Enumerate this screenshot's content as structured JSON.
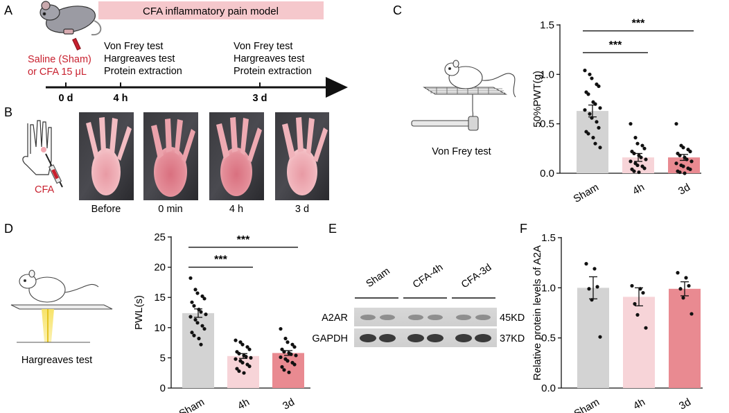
{
  "panel_letters": {
    "a": "A",
    "b": "B",
    "c": "C",
    "d": "D",
    "e": "E",
    "f": "F"
  },
  "panel_a": {
    "banner": "CFA inflammatory pain model",
    "injection_line1": "Saline (Sham)",
    "injection_line2": "or CFA 15 μL",
    "tests_4h": [
      "Von Frey test",
      "Hargreaves test",
      "Protein extraction"
    ],
    "tests_3d": [
      "Von Frey test",
      "Hargreaves test",
      "Protein extraction"
    ],
    "timepoints": [
      "0 d",
      "4 h",
      "3 d"
    ],
    "colors": {
      "banner": "#f5c8cc",
      "injection_text": "#c8202e"
    }
  },
  "panel_b": {
    "cfa_label": "CFA",
    "photo_labels": [
      "Before",
      "0 min",
      "4 h",
      "3 d"
    ]
  },
  "panel_c": {
    "illustration_label": "Von Frey test"
  },
  "panel_d": {
    "illustration_label": "Hargreaves test"
  },
  "panel_e": {
    "lanes": [
      "Sham",
      "CFA-4h",
      "CFA-3d"
    ],
    "rows": [
      {
        "protein": "A2AR",
        "size": "45KD"
      },
      {
        "protein": "GAPDH",
        "size": "37KD"
      }
    ]
  },
  "chart_data": [
    {
      "panel": "C",
      "type": "bar",
      "ylabel": "50%PWT(g)",
      "xlabel": "",
      "categories": [
        "Sham",
        "4h",
        "3d"
      ],
      "values": [
        0.63,
        0.16,
        0.16
      ],
      "errors": [
        0.06,
        0.04,
        0.03
      ],
      "ylim": [
        0,
        1.5
      ],
      "yticks": [
        "0.0",
        "0.5",
        "1.0",
        "1.5"
      ],
      "colors": [
        "#d3d3d3",
        "#f7d4d8",
        "#e98a91"
      ],
      "points": [
        [
          1.04,
          1.0,
          0.96,
          0.9,
          0.88,
          0.82,
          0.8,
          0.72,
          0.7,
          0.66,
          0.64,
          0.6,
          0.56,
          0.52,
          0.46,
          0.42,
          0.4,
          0.36,
          0.3,
          0.26
        ],
        [
          0.5,
          0.36,
          0.3,
          0.28,
          0.25,
          0.22,
          0.2,
          0.18,
          0.16,
          0.14,
          0.12,
          0.1,
          0.08,
          0.07,
          0.05,
          0.04,
          0.02,
          0.01
        ],
        [
          0.5,
          0.28,
          0.26,
          0.24,
          0.22,
          0.2,
          0.18,
          0.16,
          0.14,
          0.12,
          0.1,
          0.08,
          0.07,
          0.05,
          0.04,
          0.02,
          0.01,
          0.0
        ]
      ],
      "significance": [
        {
          "from": 0,
          "to": 1,
          "label": "***",
          "y": 1.22
        },
        {
          "from": 0,
          "to": 2,
          "label": "***",
          "y": 1.44
        }
      ]
    },
    {
      "panel": "D",
      "type": "bar",
      "ylabel": "PWL(s)",
      "xlabel": "",
      "categories": [
        "Sham",
        "4h",
        "3d"
      ],
      "values": [
        12.4,
        5.3,
        5.8
      ],
      "errors": [
        0.7,
        0.4,
        0.4
      ],
      "ylim": [
        0,
        25
      ],
      "yticks": [
        "0",
        "5",
        "10",
        "15",
        "20",
        "25"
      ],
      "colors": [
        "#d3d3d3",
        "#f7d4d8",
        "#e98a91"
      ],
      "points": [
        [
          18.2,
          16.3,
          15.7,
          15.2,
          14.8,
          14.2,
          13.6,
          13.0,
          12.6,
          12.2,
          11.8,
          11.3,
          10.8,
          10.3,
          9.8,
          9.2,
          8.7,
          8.2,
          7.2
        ],
        [
          7.9,
          7.6,
          7.2,
          6.8,
          6.4,
          6.0,
          5.7,
          5.4,
          5.2,
          5.0,
          4.8,
          4.5,
          4.2,
          3.9,
          3.6,
          3.2,
          2.8,
          2.5
        ],
        [
          9.8,
          8.2,
          7.6,
          7.2,
          6.8,
          6.4,
          6.0,
          5.8,
          5.6,
          5.4,
          5.1,
          4.8,
          4.5,
          4.2,
          3.9,
          3.5,
          3.0,
          2.6
        ]
      ],
      "significance": [
        {
          "from": 0,
          "to": 1,
          "label": "***",
          "y": 20.0
        },
        {
          "from": 0,
          "to": 2,
          "label": "***",
          "y": 23.3
        }
      ]
    },
    {
      "panel": "F",
      "type": "bar",
      "ylabel": "Relative protein levels of A2A",
      "xlabel": "",
      "categories": [
        "Sham",
        "4h",
        "3d"
      ],
      "values": [
        1.0,
        0.91,
        0.99
      ],
      "errors": [
        0.11,
        0.09,
        0.07
      ],
      "ylim": [
        0,
        1.5
      ],
      "yticks": [
        "0.0",
        "0.5",
        "1.0",
        "1.5"
      ],
      "colors": [
        "#d3d3d3",
        "#f7d4d8",
        "#e98a91"
      ],
      "points": [
        [
          1.24,
          1.19,
          1.01,
          0.99,
          0.88,
          0.51
        ],
        [
          1.02,
          0.99,
          0.95,
          0.84,
          0.73,
          0.6
        ],
        [
          1.15,
          1.1,
          1.02,
          0.99,
          0.9,
          0.74
        ]
      ],
      "significance": []
    }
  ]
}
